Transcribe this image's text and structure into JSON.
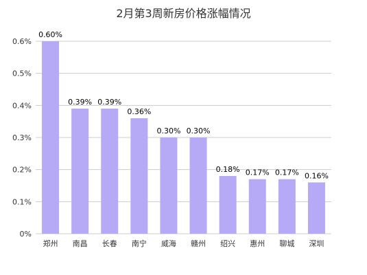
{
  "chart_data": {
    "type": "bar",
    "title": "2月第3周新房价格涨幅情况",
    "categories": [
      "郑州",
      "南昌",
      "长春",
      "南宁",
      "威海",
      "赣州",
      "绍兴",
      "惠州",
      "聊城",
      "深圳"
    ],
    "values": [
      0.6,
      0.39,
      0.39,
      0.36,
      0.3,
      0.3,
      0.18,
      0.17,
      0.17,
      0.16
    ],
    "data_labels": [
      "0.60%",
      "0.39%",
      "0.39%",
      "0.36%",
      "0.30%",
      "0.30%",
      "0.18%",
      "0.17%",
      "0.17%",
      "0.16%"
    ],
    "y_ticks": [
      0,
      0.1,
      0.2,
      0.3,
      0.4,
      0.5,
      0.6
    ],
    "y_tick_labels": [
      "0%",
      "0.1%",
      "0.2%",
      "0.3%",
      "0.4%",
      "0.5%",
      "0.6%"
    ],
    "ylim": [
      0,
      0.6
    ],
    "xlabel": "",
    "ylabel": "",
    "grid": true,
    "bar_color": "#b6a9f5",
    "grid_color": "#cccccc",
    "text_color": "#333333"
  }
}
